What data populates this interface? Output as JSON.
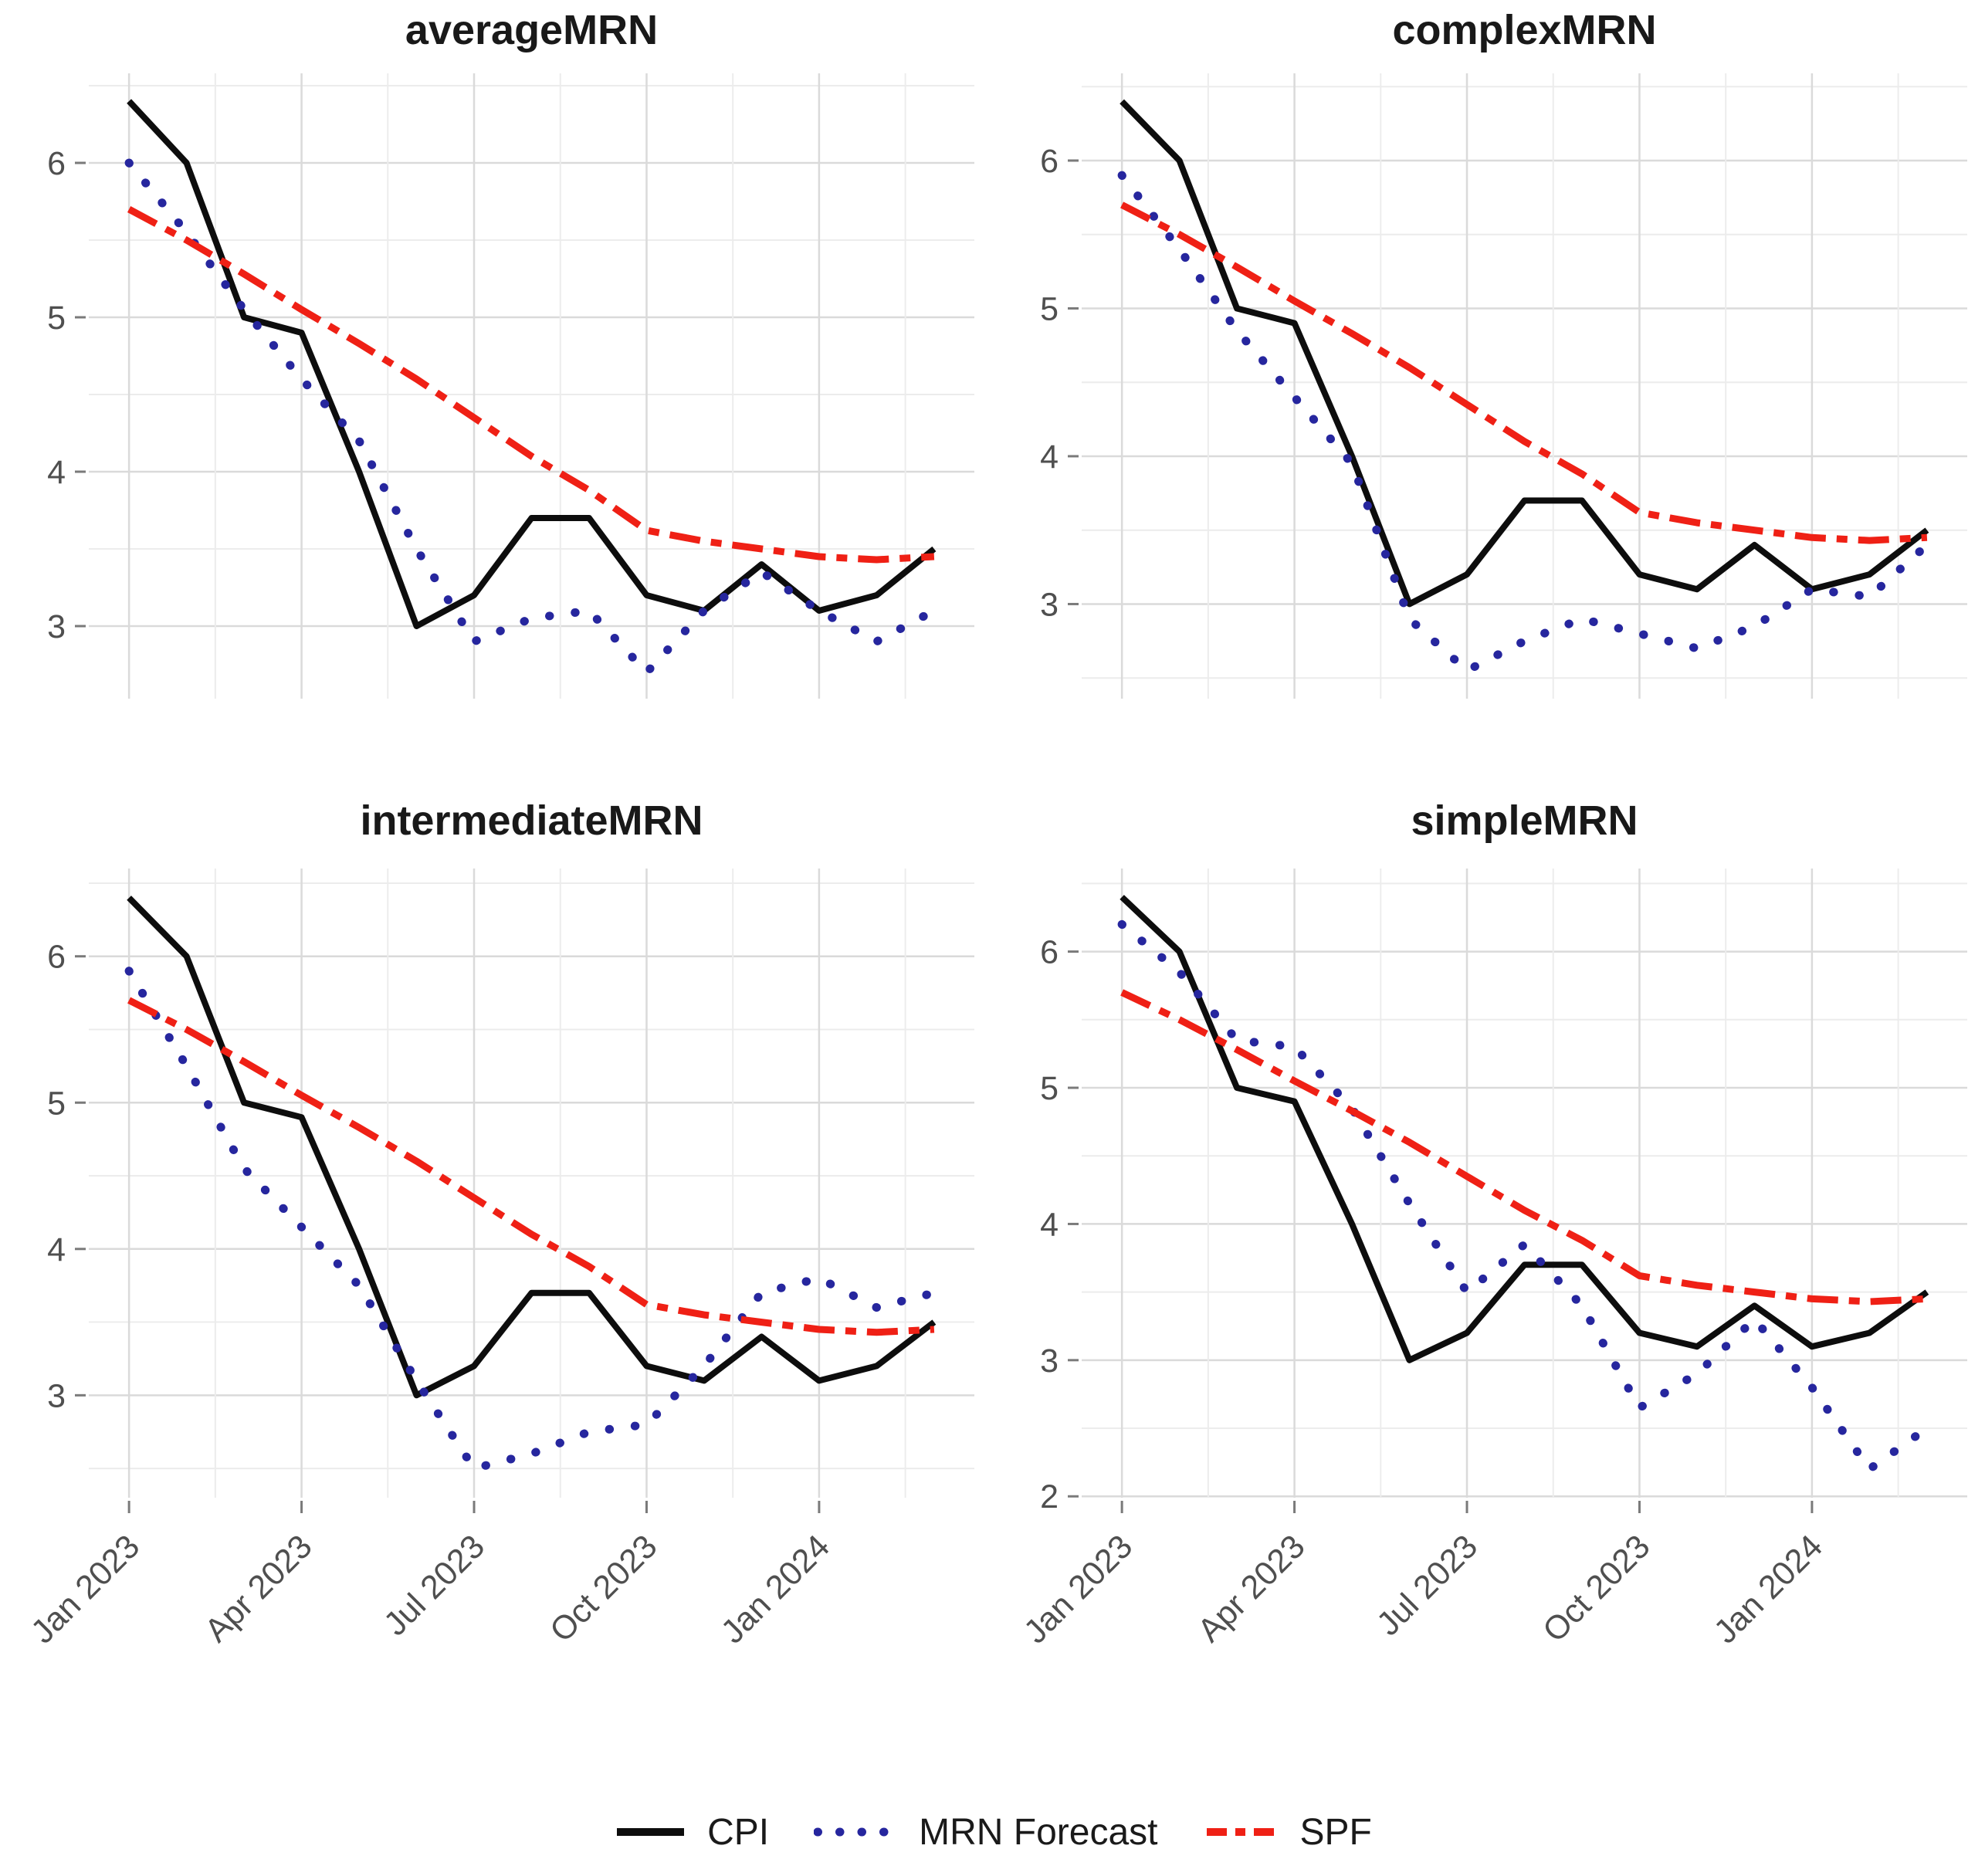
{
  "figure": {
    "background": "#ffffff",
    "grid_major_color": "#dadada",
    "grid_minor_color": "#ececec",
    "axis_text_color": "#4f4f4f"
  },
  "legend": {
    "items": [
      {
        "label": "CPI",
        "style": "solid",
        "color": "#0d0d0d"
      },
      {
        "label": "MRN Forecast",
        "style": "dotted",
        "color": "#26269e"
      },
      {
        "label": "SPF",
        "style": "dashdot",
        "color": "#ef2015"
      }
    ]
  },
  "chart_data": [
    {
      "type": "line",
      "title": "averageMRN",
      "x": [
        "Jan 2023",
        "Feb 2023",
        "Mar 2023",
        "Apr 2023",
        "May 2023",
        "Jun 2023",
        "Jul 2023",
        "Aug 2023",
        "Sep 2023",
        "Oct 2023",
        "Nov 2023",
        "Dec 2023",
        "Jan 2024",
        "Feb 2024",
        "Mar 2024"
      ],
      "xtick_positions": [
        0,
        3,
        6,
        9,
        12
      ],
      "xtick_labels": [
        "Jan 2023",
        "Apr 2023",
        "Jul 2023",
        "Oct 2023",
        "Jan 2024"
      ],
      "ylim": [
        2.53,
        6.58
      ],
      "yticks": [
        3,
        4,
        5,
        6
      ],
      "grid": true,
      "legend_position": "bottom",
      "series": [
        {
          "name": "CPI",
          "style": "solid",
          "color": "#0d0d0d",
          "values": [
            6.4,
            6.0,
            5.0,
            4.9,
            4.0,
            3.0,
            3.2,
            3.7,
            3.7,
            3.2,
            3.1,
            3.4,
            3.1,
            3.2,
            3.5
          ]
        },
        {
          "name": "MRN Forecast",
          "style": "dotted",
          "color": "#26269e",
          "values": [
            6.0,
            5.55,
            5.05,
            4.6,
            4.2,
            3.5,
            2.9,
            3.05,
            3.1,
            2.7,
            3.1,
            3.35,
            3.1,
            2.9,
            3.1
          ]
        },
        {
          "name": "SPF",
          "style": "dashdot",
          "color": "#ef2015",
          "values": [
            5.7,
            5.5,
            5.28,
            5.05,
            4.83,
            4.6,
            4.35,
            4.1,
            3.88,
            3.62,
            3.55,
            3.5,
            3.45,
            3.43,
            3.45
          ]
        }
      ]
    },
    {
      "type": "line",
      "title": "complexMRN",
      "x": [
        "Jan 2023",
        "Feb 2023",
        "Mar 2023",
        "Apr 2023",
        "May 2023",
        "Jun 2023",
        "Jul 2023",
        "Aug 2023",
        "Sep 2023",
        "Oct 2023",
        "Nov 2023",
        "Dec 2023",
        "Jan 2024",
        "Feb 2024",
        "Mar 2024"
      ],
      "xtick_positions": [
        0,
        3,
        6,
        9,
        12
      ],
      "xtick_labels": [
        "Jan 2023",
        "Apr 2023",
        "Jul 2023",
        "Oct 2023",
        "Jan 2024"
      ],
      "ylim": [
        2.36,
        6.59
      ],
      "yticks": [
        3,
        4,
        5,
        6
      ],
      "grid": true,
      "legend_position": "bottom",
      "series": [
        {
          "name": "CPI",
          "style": "solid",
          "color": "#0d0d0d",
          "values": [
            6.4,
            6.0,
            5.0,
            4.9,
            4.0,
            3.0,
            3.2,
            3.7,
            3.7,
            3.2,
            3.1,
            3.4,
            3.1,
            3.2,
            3.5
          ]
        },
        {
          "name": "MRN Forecast",
          "style": "dotted",
          "color": "#26269e",
          "values": [
            5.9,
            5.4,
            4.85,
            4.4,
            3.95,
            2.9,
            2.55,
            2.75,
            2.9,
            2.8,
            2.7,
            2.85,
            3.1,
            3.05,
            3.4
          ]
        },
        {
          "name": "SPF",
          "style": "dashdot",
          "color": "#ef2015",
          "values": [
            5.7,
            5.5,
            5.28,
            5.05,
            4.83,
            4.6,
            4.35,
            4.1,
            3.88,
            3.62,
            3.55,
            3.5,
            3.45,
            3.43,
            3.45
          ]
        }
      ]
    },
    {
      "type": "line",
      "title": "intermediateMRN",
      "x": [
        "Jan 2023",
        "Feb 2023",
        "Mar 2023",
        "Apr 2023",
        "May 2023",
        "Jun 2023",
        "Jul 2023",
        "Aug 2023",
        "Sep 2023",
        "Oct 2023",
        "Nov 2023",
        "Dec 2023",
        "Jan 2024",
        "Feb 2024",
        "Mar 2024"
      ],
      "xtick_positions": [
        0,
        3,
        6,
        9,
        12
      ],
      "xtick_labels": [
        "Jan 2023",
        "Apr 2023",
        "Jul 2023",
        "Oct 2023",
        "Jan 2024"
      ],
      "ylim": [
        2.3,
        6.6
      ],
      "yticks": [
        3,
        4,
        5,
        6
      ],
      "grid": true,
      "legend_position": "bottom",
      "series": [
        {
          "name": "CPI",
          "style": "solid",
          "color": "#0d0d0d",
          "values": [
            6.4,
            6.0,
            5.0,
            4.9,
            4.0,
            3.0,
            3.2,
            3.7,
            3.7,
            3.2,
            3.1,
            3.4,
            3.1,
            3.2,
            3.5
          ]
        },
        {
          "name": "MRN Forecast",
          "style": "dotted",
          "color": "#26269e",
          "values": [
            5.9,
            5.25,
            4.55,
            4.15,
            3.75,
            3.1,
            2.5,
            2.6,
            2.75,
            2.8,
            3.2,
            3.7,
            3.8,
            3.6,
            3.7
          ]
        },
        {
          "name": "SPF",
          "style": "dashdot",
          "color": "#ef2015",
          "values": [
            5.7,
            5.5,
            5.28,
            5.05,
            4.83,
            4.6,
            4.35,
            4.1,
            3.88,
            3.62,
            3.55,
            3.5,
            3.45,
            3.43,
            3.45
          ]
        }
      ]
    },
    {
      "type": "line",
      "title": "simpleMRN",
      "x": [
        "Jan 2023",
        "Feb 2023",
        "Mar 2023",
        "Apr 2023",
        "May 2023",
        "Jun 2023",
        "Jul 2023",
        "Aug 2023",
        "Sep 2023",
        "Oct 2023",
        "Nov 2023",
        "Dec 2023",
        "Jan 2024",
        "Feb 2024",
        "Mar 2024"
      ],
      "xtick_positions": [
        0,
        3,
        6,
        9,
        12
      ],
      "xtick_labels": [
        "Jan 2023",
        "Apr 2023",
        "Jul 2023",
        "Oct 2023",
        "Jan 2024"
      ],
      "ylim": [
        1.99,
        6.61
      ],
      "yticks": [
        2,
        3,
        4,
        5,
        6
      ],
      "grid": true,
      "legend_position": "bottom",
      "series": [
        {
          "name": "CPI",
          "style": "solid",
          "color": "#0d0d0d",
          "values": [
            6.4,
            6.0,
            5.0,
            4.9,
            4.0,
            3.0,
            3.2,
            3.7,
            3.7,
            3.2,
            3.1,
            3.4,
            3.1,
            3.2,
            3.5
          ]
        },
        {
          "name": "MRN Forecast",
          "style": "dotted",
          "color": "#26269e",
          "values": [
            6.2,
            5.85,
            5.35,
            5.3,
            4.85,
            4.15,
            3.5,
            3.85,
            3.4,
            2.65,
            2.9,
            3.3,
            2.8,
            2.2,
            2.5
          ]
        },
        {
          "name": "SPF",
          "style": "dashdot",
          "color": "#ef2015",
          "values": [
            5.7,
            5.5,
            5.28,
            5.05,
            4.83,
            4.6,
            4.35,
            4.1,
            3.88,
            3.62,
            3.55,
            3.5,
            3.45,
            3.43,
            3.45
          ]
        }
      ]
    }
  ]
}
